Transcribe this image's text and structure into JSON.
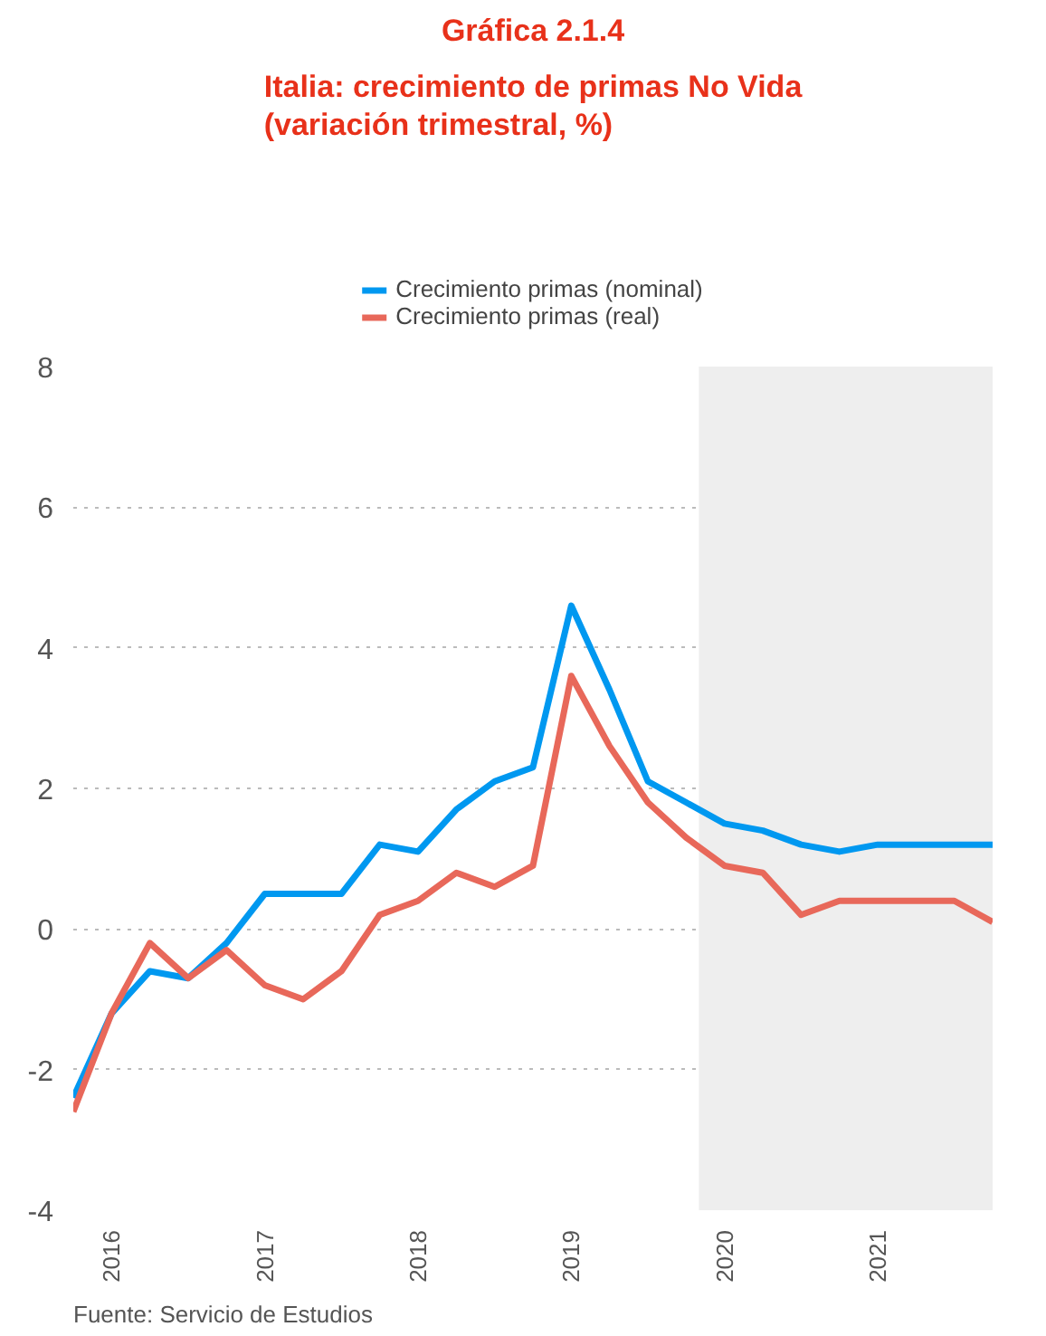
{
  "chart_data": {
    "type": "line",
    "title": "Gráfica 2.1.4",
    "subtitle": "Italia: crecimiento de primas No Vida\n(variación trimestral, %)",
    "x": [
      "2015-10",
      "2016-01",
      "2016-04",
      "2016-07",
      "2016-10",
      "2017-01",
      "2017-04",
      "2017-07",
      "2017-10",
      "2018-01",
      "2018-04",
      "2018-07",
      "2018-10",
      "2019-01",
      "2019-04",
      "2019-07",
      "2019-10",
      "2020-01",
      "2020-04",
      "2020-07",
      "2020-10",
      "2021-01",
      "2021-04",
      "2021-07",
      "2021-10"
    ],
    "series": [
      {
        "name": "Crecimiento primas (nominal)",
        "color": "#0098f0",
        "values": [
          -2.4,
          -1.2,
          -0.6,
          -0.7,
          -0.2,
          0.5,
          0.5,
          0.5,
          1.2,
          1.1,
          1.7,
          2.1,
          2.3,
          4.6,
          3.4,
          2.1,
          1.8,
          1.5,
          1.4,
          1.2,
          1.1,
          1.2,
          1.2,
          1.2,
          1.2
        ]
      },
      {
        "name": "Crecimiento primas (real)",
        "color": "#e8685a",
        "values": [
          -2.6,
          -1.2,
          -0.2,
          -0.7,
          -0.3,
          -0.8,
          -1.0,
          -0.6,
          0.2,
          0.4,
          0.8,
          0.6,
          0.9,
          3.6,
          2.6,
          1.8,
          1.3,
          0.9,
          0.8,
          0.2,
          0.4,
          0.4,
          0.4,
          0.4,
          0.1
        ]
      }
    ],
    "xlim": [
      "2015-10",
      "2021-10"
    ],
    "xticks": [
      {
        "value": "2016-01",
        "label": "2016"
      },
      {
        "value": "2017-01",
        "label": "2017"
      },
      {
        "value": "2018-01",
        "label": "2018"
      },
      {
        "value": "2019-01",
        "label": "2019"
      },
      {
        "value": "2020-01",
        "label": "2020"
      },
      {
        "value": "2021-01",
        "label": "2021"
      }
    ],
    "ylim": [
      -4,
      8
    ],
    "yticks": [
      -4,
      -2,
      0,
      2,
      4,
      6,
      8
    ],
    "bands": [
      {
        "axis": "x",
        "from": "2019-11",
        "to": "2021-10",
        "color": "#eeeeee"
      }
    ],
    "grid": "y",
    "legend": "top",
    "line_style": "solid",
    "annotations": [
      "Fuente: Servicio de Estudios"
    ]
  }
}
